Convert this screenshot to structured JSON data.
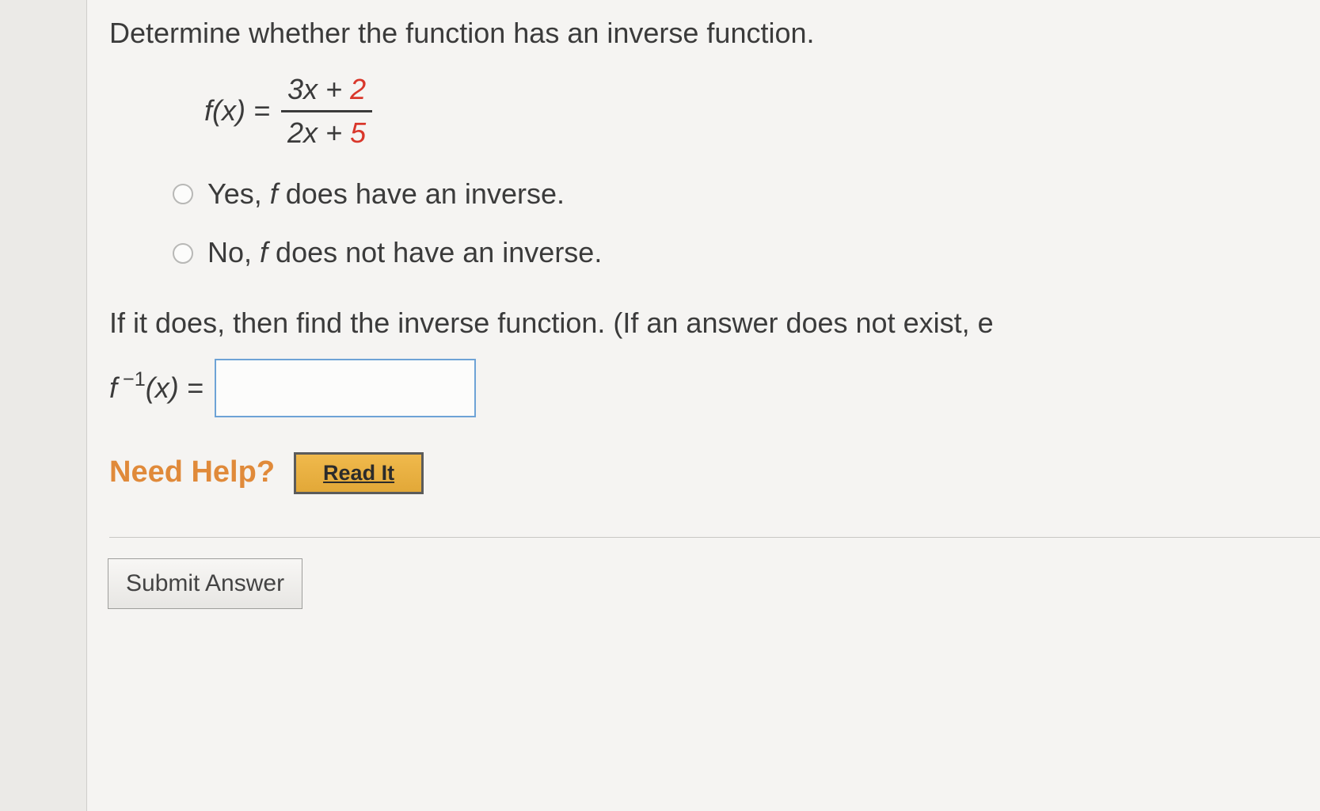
{
  "colors": {
    "background": "#f5f4f2",
    "gutter": "#ebeae7",
    "text": "#3b3b3b",
    "accent_red": "#d9372b",
    "input_border": "#6ea3d6",
    "help_orange": "#e08a3a",
    "button_gold_top": "#f0b94c",
    "button_gold_bottom": "#e2a838"
  },
  "question": {
    "prompt": "Determine whether the function has an inverse function.",
    "formula": {
      "lhs": "f(x) =",
      "numerator_plain": "3x + ",
      "numerator_red": "2",
      "denominator_plain": "2x + ",
      "denominator_red": "5"
    }
  },
  "options": [
    {
      "label_prefix": "Yes, ",
      "label_italic": "f",
      "label_suffix": " does have an inverse."
    },
    {
      "label_prefix": "No, ",
      "label_italic": "f",
      "label_suffix": " does not have an inverse."
    }
  ],
  "followup": {
    "text": "If it does, then find the inverse function. (If an answer does not exist, e",
    "answer_label_html": "f⁻¹(x) =",
    "answer_value": ""
  },
  "help": {
    "label": "Need Help?",
    "readit": "Read It"
  },
  "submit": {
    "label": "Submit Answer"
  }
}
